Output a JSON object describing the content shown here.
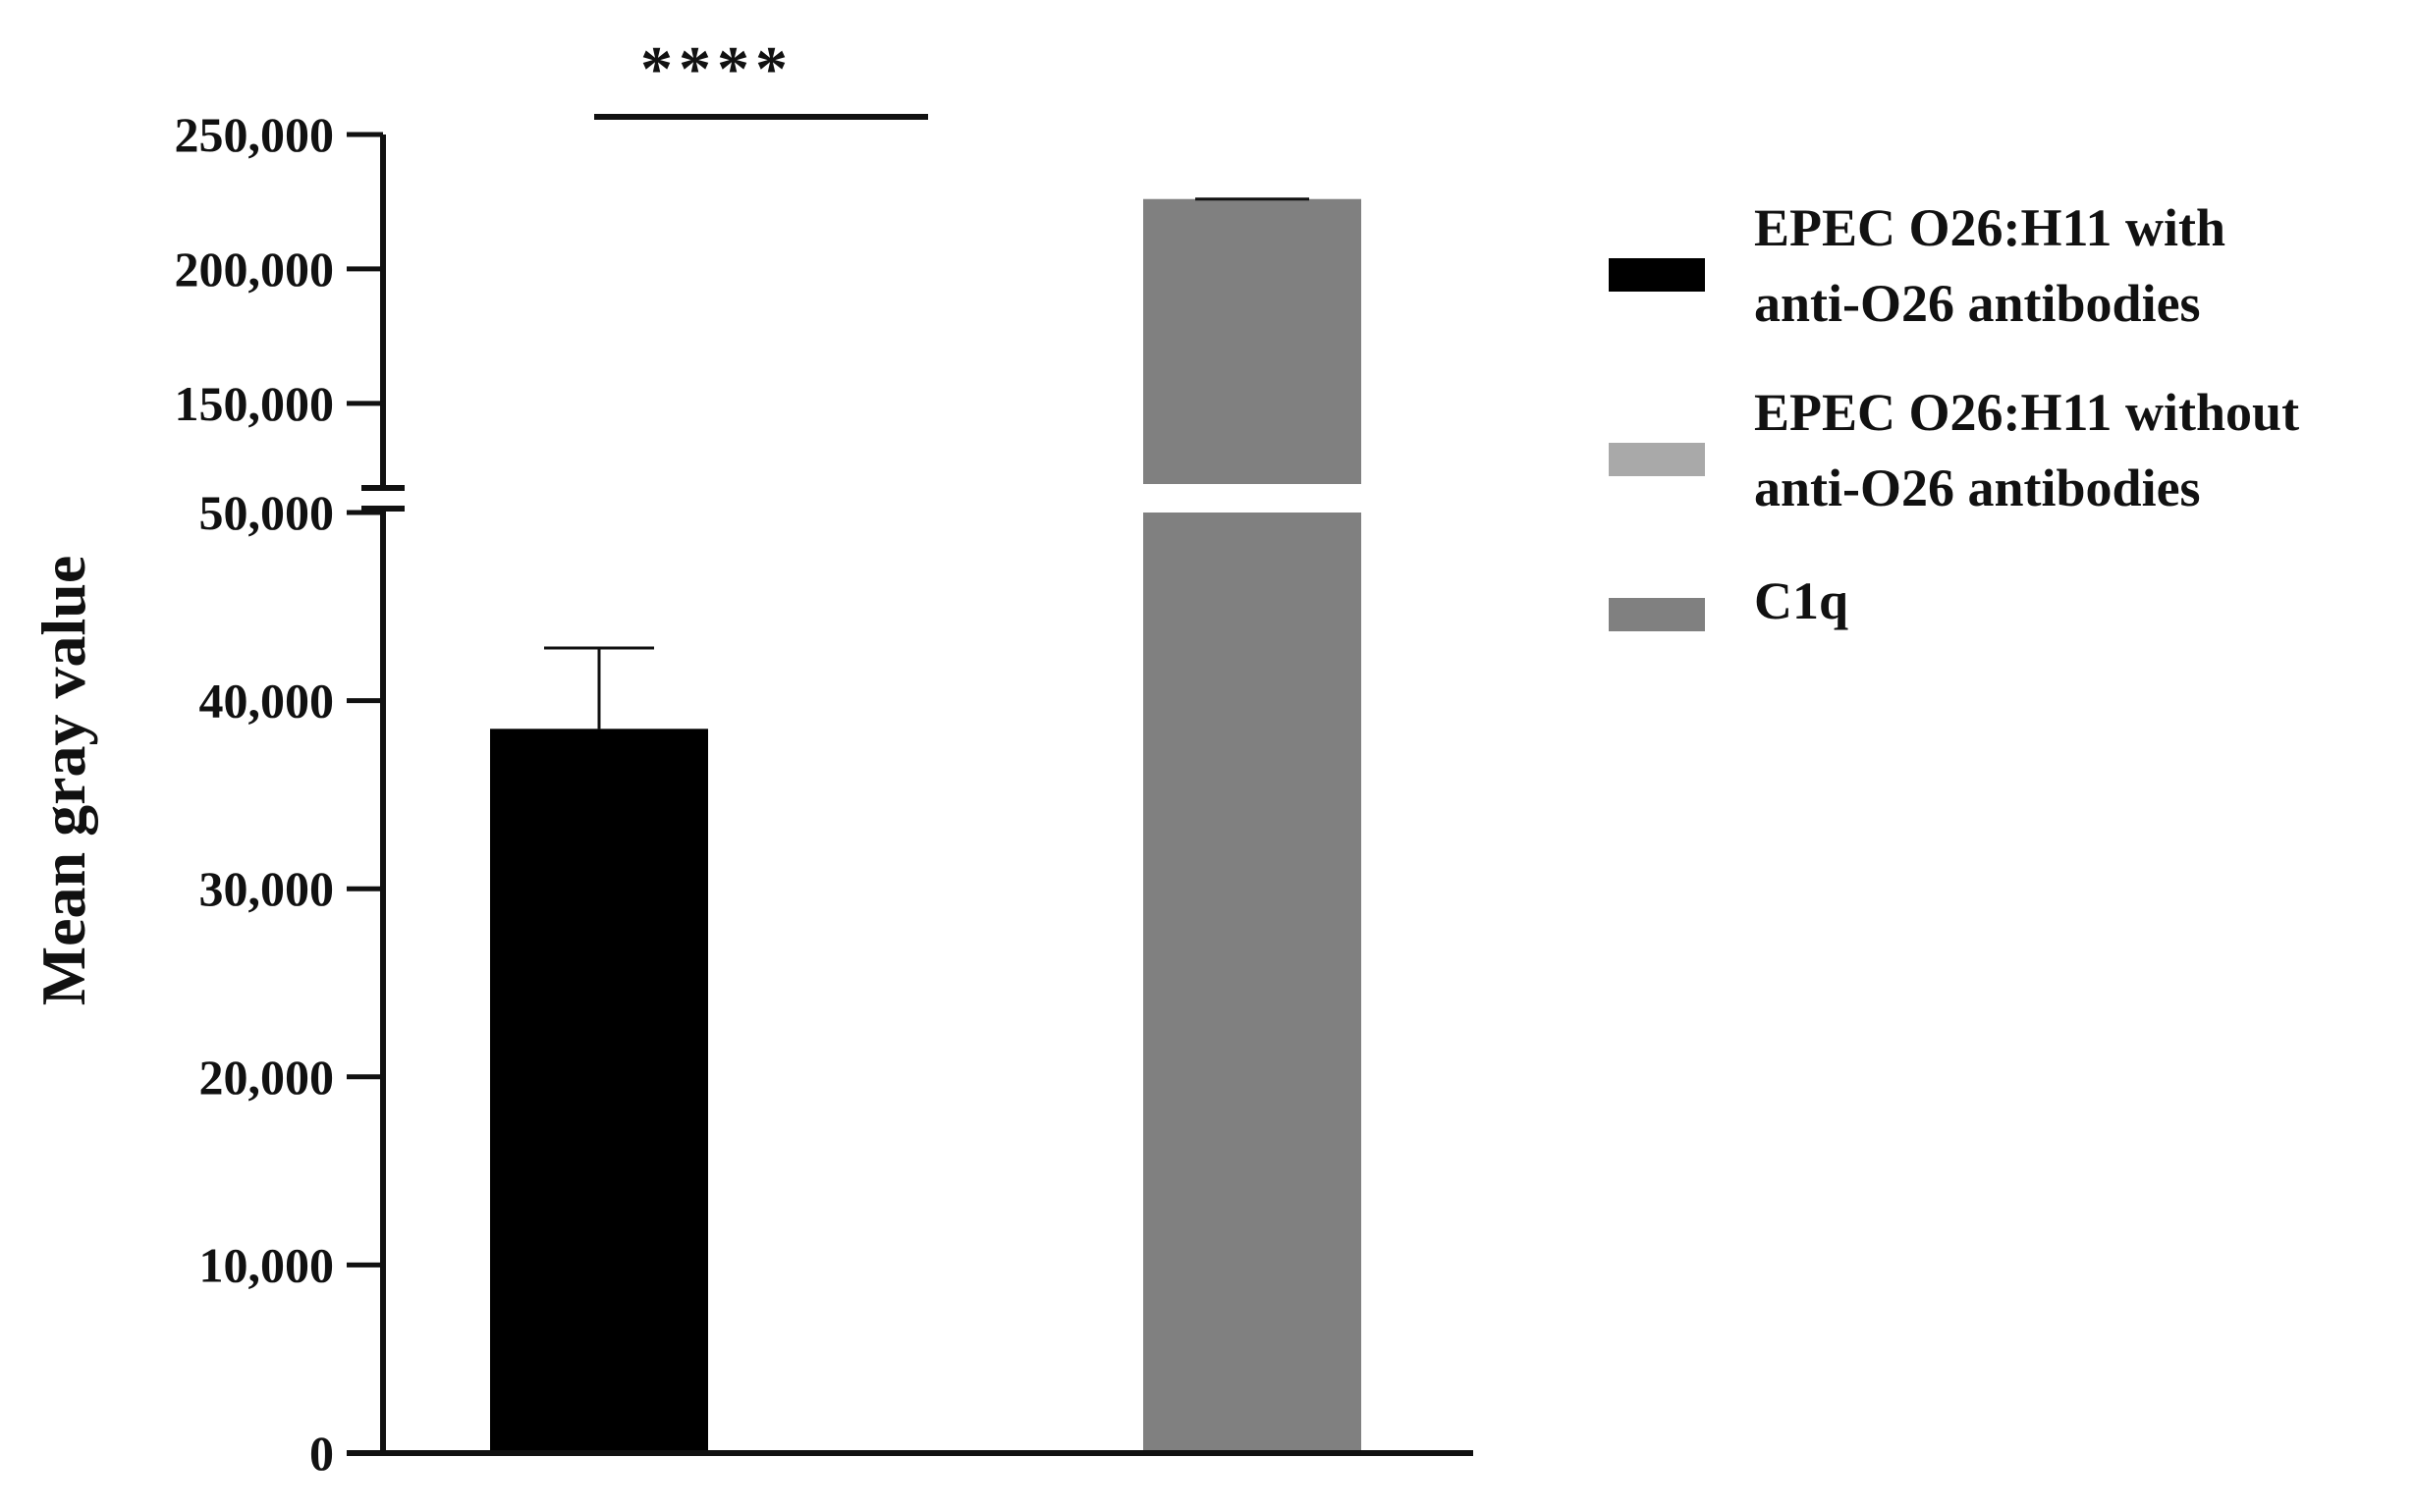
{
  "chart_data": {
    "type": "bar",
    "ylabel": "Mean gray value",
    "xlabel": "",
    "title": "",
    "y_axis_break": {
      "lower_segment": [
        0,
        50000
      ],
      "upper_segment": [
        120000,
        250000
      ]
    },
    "lower_ticks": [
      "0",
      "10,000",
      "20,000",
      "30,000",
      "40,000",
      "50,000"
    ],
    "lower_tick_values": [
      0,
      10000,
      20000,
      30000,
      40000,
      50000
    ],
    "upper_ticks": [
      "150,000",
      "200,000",
      "250,000"
    ],
    "upper_tick_values": [
      150000,
      200000,
      250000
    ],
    "series": [
      {
        "name": "EPEC O26:H11 with anti-O26 antibodies",
        "color": "#000000",
        "value": 38500,
        "error": 4300
      },
      {
        "name": "EPEC O26:H11 without anti-O26 antibodies",
        "color": "#a9a9a9",
        "value": 0,
        "error": 0
      },
      {
        "name": "C1q",
        "color": "#808080",
        "value": 226000,
        "error": 0
      }
    ],
    "legend": {
      "position": "right",
      "entries": [
        {
          "lines": [
            "EPEC O26:H11 with",
            "anti-O26 antibodies"
          ],
          "color": "#000000"
        },
        {
          "lines": [
            "EPEC O26:H11 without",
            "anti-O26 antibodies"
          ],
          "color": "#a9a9a9"
        },
        {
          "lines": [
            "C1q"
          ],
          "color": "#808080"
        }
      ]
    },
    "significance": {
      "label": "****",
      "between": [
        0,
        1
      ]
    },
    "grid": false
  }
}
